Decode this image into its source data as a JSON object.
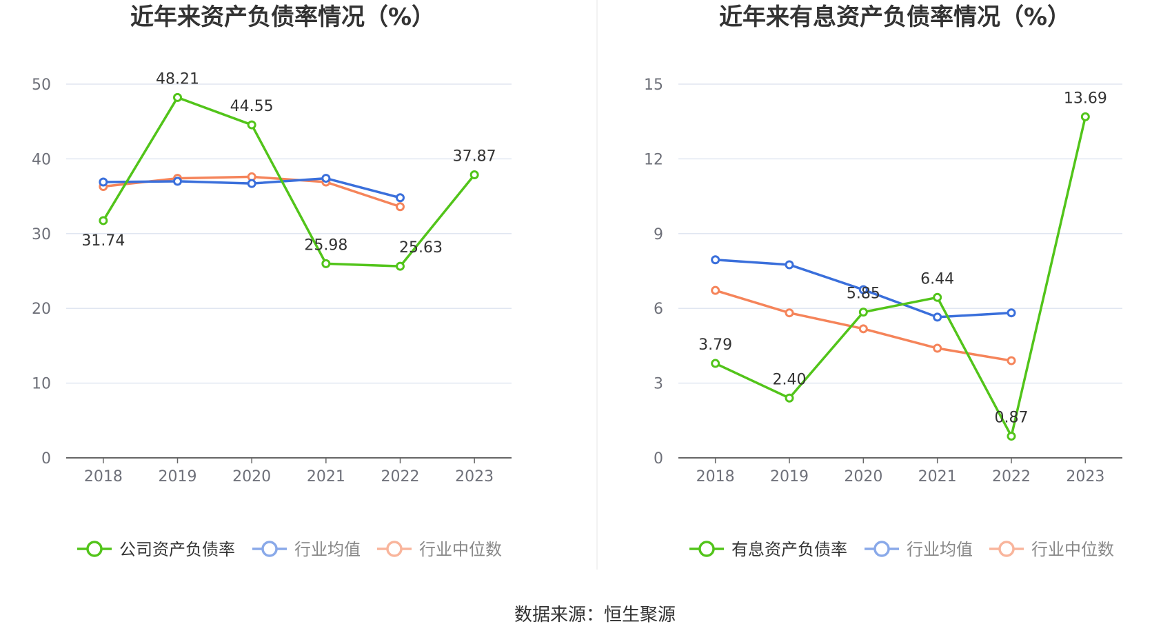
{
  "source_label": "数据来源：恒生聚源",
  "colors": {
    "company": "#52c41a",
    "industry_avg": "#3a6fdb",
    "industry_median": "#f5845a",
    "grid": "#e0e6f1",
    "axis": "#666666"
  },
  "chart_data": [
    {
      "type": "line",
      "title": "近年来资产负债率情况（%）",
      "categories": [
        "2018",
        "2019",
        "2020",
        "2021",
        "2022",
        "2023"
      ],
      "ylim": [
        0,
        50
      ],
      "yticks": [
        0,
        10,
        20,
        30,
        40,
        50
      ],
      "grid": true,
      "legend_position": "bottom",
      "series": [
        {
          "name": "公司资产负债率",
          "color_key": "company",
          "values": [
            31.74,
            48.21,
            44.55,
            25.98,
            25.63,
            37.87
          ],
          "labels": [
            "31.74",
            "48.21",
            "44.55",
            "25.98",
            "25.63",
            "37.87"
          ],
          "legend_active": true
        },
        {
          "name": "行业均值",
          "color_key": "industry_avg",
          "values": [
            36.9,
            37.0,
            36.7,
            37.4,
            34.8,
            null
          ],
          "legend_active": false
        },
        {
          "name": "行业中位数",
          "color_key": "industry_median",
          "values": [
            36.3,
            37.4,
            37.6,
            36.9,
            33.6,
            null
          ],
          "legend_active": false
        }
      ]
    },
    {
      "type": "line",
      "title": "近年来有息资产负债率情况（%）",
      "categories": [
        "2018",
        "2019",
        "2020",
        "2021",
        "2022",
        "2023"
      ],
      "ylim": [
        0,
        15
      ],
      "yticks": [
        0,
        3,
        6,
        9,
        12,
        15
      ],
      "grid": true,
      "legend_position": "bottom",
      "series": [
        {
          "name": "有息资产负债率",
          "color_key": "company",
          "values": [
            3.79,
            2.4,
            5.85,
            6.44,
            0.87,
            13.69
          ],
          "labels": [
            "3.79",
            "2.40",
            "5.85",
            "6.44",
            "0.87",
            "13.69"
          ],
          "legend_active": true
        },
        {
          "name": "行业均值",
          "color_key": "industry_avg",
          "values": [
            7.95,
            7.75,
            6.75,
            5.65,
            5.82,
            null
          ],
          "legend_active": false
        },
        {
          "name": "行业中位数",
          "color_key": "industry_median",
          "values": [
            6.72,
            5.82,
            5.18,
            4.4,
            3.9,
            null
          ],
          "legend_active": false
        }
      ]
    }
  ]
}
